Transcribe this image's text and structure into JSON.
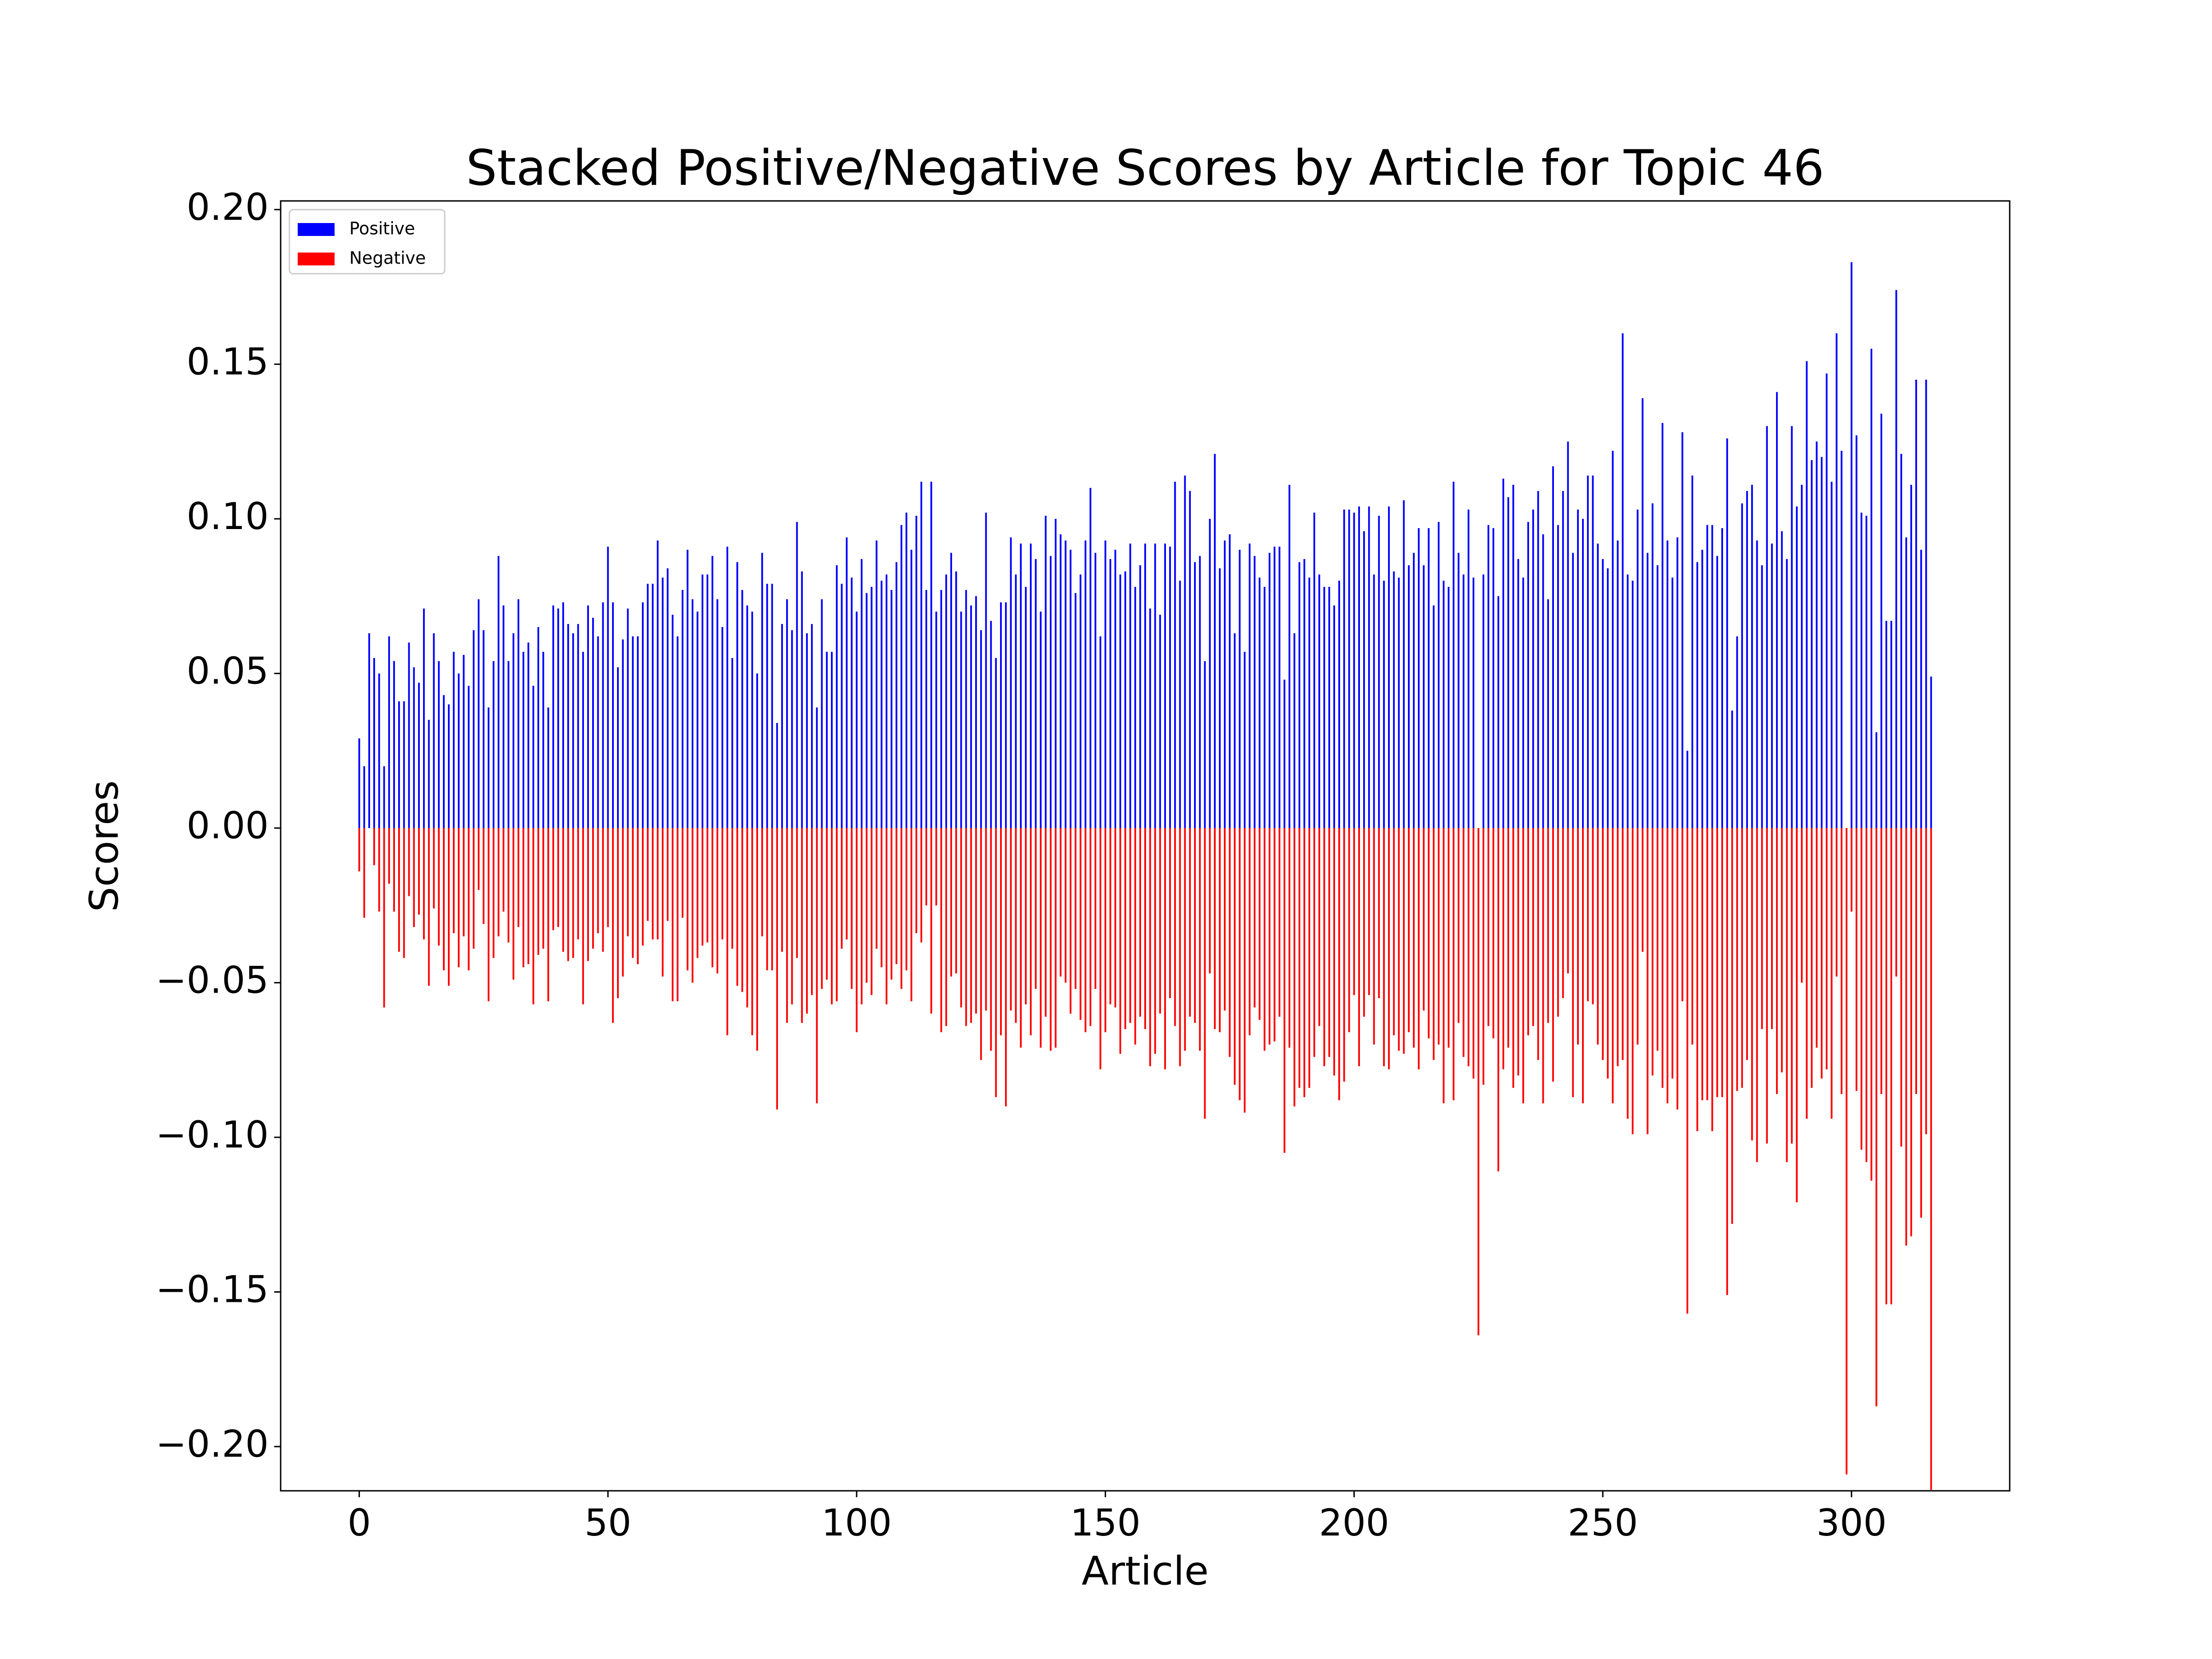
{
  "chart_data": {
    "type": "bar",
    "stacked": true,
    "title": "Stacked Positive/Negative Scores by Article for Topic 46",
    "xlabel": "Article",
    "ylabel": "Scores",
    "legend": "upper left",
    "x": [
      0,
      1,
      2,
      3,
      4,
      5,
      6,
      7,
      8,
      9,
      10,
      11,
      12,
      13,
      14,
      15,
      16,
      17,
      18,
      19,
      20,
      21,
      22,
      23,
      24,
      25,
      26,
      27,
      28,
      29,
      30,
      31,
      32,
      33,
      34,
      35,
      36,
      37,
      38,
      39,
      40,
      41,
      42,
      43,
      44,
      45,
      46,
      47,
      48,
      49,
      50,
      51,
      52,
      53,
      54,
      55,
      56,
      57,
      58,
      59,
      60,
      61,
      62,
      63,
      64,
      65,
      66,
      67,
      68,
      69,
      70,
      71,
      72,
      73,
      74,
      75,
      76,
      77,
      78,
      79,
      80,
      81,
      82,
      83,
      84,
      85,
      86,
      87,
      88,
      89,
      90,
      91,
      92,
      93,
      94,
      95,
      96,
      97,
      98,
      99,
      100,
      101,
      102,
      103,
      104,
      105,
      106,
      107,
      108,
      109,
      110,
      111,
      112,
      113,
      114,
      115,
      116,
      117,
      118,
      119,
      120,
      121,
      122,
      123,
      124,
      125,
      126,
      127,
      128,
      129,
      130,
      131,
      132,
      133,
      134,
      135,
      136,
      137,
      138,
      139,
      140,
      141,
      142,
      143,
      144,
      145,
      146,
      147,
      148,
      149,
      150,
      151,
      152,
      153,
      154,
      155,
      156,
      157,
      158,
      159,
      160,
      161,
      162,
      163,
      164,
      165,
      166,
      167,
      168,
      169,
      170,
      171,
      172,
      173,
      174,
      175,
      176,
      177,
      178,
      179,
      180,
      181,
      182,
      183,
      184,
      185,
      186,
      187,
      188,
      189,
      190,
      191,
      192,
      193,
      194,
      195,
      196,
      197,
      198,
      199,
      200,
      201,
      202,
      203,
      204,
      205,
      206,
      207,
      208,
      209,
      210,
      211,
      212,
      213,
      214,
      215,
      216,
      217,
      218,
      219,
      220,
      221,
      222,
      223,
      224,
      225,
      226,
      227,
      228,
      229,
      230,
      231,
      232,
      233,
      234,
      235,
      236,
      237,
      238,
      239,
      240,
      241,
      242,
      243,
      244,
      245,
      246,
      247,
      248,
      249,
      250,
      251,
      252,
      253,
      254,
      255,
      256,
      257,
      258,
      259,
      260,
      261,
      262,
      263,
      264,
      265,
      266,
      267,
      268,
      269,
      270,
      271,
      272,
      273,
      274,
      275,
      276,
      277,
      278,
      279,
      280,
      281,
      282,
      283,
      284,
      285,
      286,
      287,
      288,
      289,
      290,
      291,
      292,
      293,
      294,
      295,
      296,
      297,
      298,
      299,
      300,
      301,
      302,
      303,
      304,
      305,
      306,
      307,
      308,
      309,
      310,
      311,
      312,
      313,
      314,
      315,
      316
    ],
    "series": [
      {
        "name": "Positive",
        "color": "blue",
        "values": [
          0.029,
          0.02,
          0.063,
          0.055,
          0.05,
          0.02,
          0.062,
          0.054,
          0.041,
          0.041,
          0.06,
          0.052,
          0.047,
          0.071,
          0.035,
          0.063,
          0.054,
          0.043,
          0.04,
          0.057,
          0.05,
          0.056,
          0.046,
          0.064,
          0.074,
          0.064,
          0.039,
          0.054,
          0.088,
          0.072,
          0.054,
          0.063,
          0.074,
          0.057,
          0.06,
          0.046,
          0.065,
          0.057,
          0.039,
          0.072,
          0.071,
          0.073,
          0.066,
          0.063,
          0.066,
          0.057,
          0.072,
          0.068,
          0.062,
          0.073,
          0.091,
          0.073,
          0.052,
          0.061,
          0.071,
          0.062,
          0.062,
          0.073,
          0.079,
          0.079,
          0.093,
          0.081,
          0.084,
          0.069,
          0.062,
          0.077,
          0.09,
          0.074,
          0.07,
          0.082,
          0.082,
          0.088,
          0.074,
          0.065,
          0.091,
          0.055,
          0.086,
          0.077,
          0.072,
          0.07,
          0.05,
          0.089,
          0.079,
          0.079,
          0.034,
          0.066,
          0.074,
          0.064,
          0.099,
          0.083,
          0.063,
          0.066,
          0.039,
          0.074,
          0.057,
          0.057,
          0.085,
          0.079,
          0.094,
          0.081,
          0.07,
          0.087,
          0.076,
          0.078,
          0.093,
          0.08,
          0.082,
          0.077,
          0.086,
          0.098,
          0.102,
          0.09,
          0.101,
          0.112,
          0.077,
          0.112,
          0.07,
          0.077,
          0.082,
          0.089,
          0.083,
          0.07,
          0.077,
          0.072,
          0.075,
          0.064,
          0.102,
          0.067,
          0.055,
          0.073,
          0.073,
          0.094,
          0.082,
          0.092,
          0.078,
          0.092,
          0.087,
          0.07,
          0.101,
          0.088,
          0.1,
          0.095,
          0.093,
          0.09,
          0.076,
          0.082,
          0.093,
          0.11,
          0.089,
          0.062,
          0.093,
          0.087,
          0.09,
          0.082,
          0.083,
          0.092,
          0.078,
          0.085,
          0.092,
          0.071,
          0.092,
          0.069,
          0.092,
          0.091,
          0.112,
          0.08,
          0.114,
          0.109,
          0.086,
          0.088,
          0.054,
          0.1,
          0.121,
          0.084,
          0.093,
          0.095,
          0.063,
          0.09,
          0.057,
          0.092,
          0.088,
          0.081,
          0.078,
          0.089,
          0.091,
          0.091,
          0.048,
          0.111,
          0.063,
          0.086,
          0.087,
          0.081,
          0.102,
          0.082,
          0.078,
          0.078,
          0.072,
          0.08,
          0.103,
          0.103,
          0.102,
          0.104,
          0.096,
          0.104,
          0.082,
          0.101,
          0.08,
          0.104,
          0.083,
          0.081,
          0.106,
          0.085,
          0.089,
          0.097,
          0.085,
          0.097,
          0.072,
          0.099,
          0.08,
          0.078,
          0.112,
          0.089,
          0.082,
          0.103,
          0.081,
          0,
          0.082,
          0.098,
          0.097,
          0.075,
          0.113,
          0.107,
          0.111,
          0.087,
          0.081,
          0.099,
          0.103,
          0.109,
          0.095,
          0.074,
          0.117,
          0.098,
          0.109,
          0.125,
          0.089,
          0.103,
          0.1,
          0.114,
          0.114,
          0.092,
          0.087,
          0.084,
          0.122,
          0.093,
          0.16,
          0.082,
          0.08,
          0.103,
          0.139,
          0.089,
          0.105,
          0.085,
          0.131,
          0.093,
          0.081,
          0.094,
          0.128,
          0.025,
          0.114,
          0.086,
          0.09,
          0.098,
          0.098,
          0.088,
          0.097,
          0.126,
          0.038,
          0.062,
          0.105,
          0.109,
          0.111,
          0.093,
          0.085,
          0.13,
          0.092,
          0.141,
          0.096,
          0.087,
          0.13,
          0.104,
          0.111,
          0.151,
          0.119,
          0.125,
          0.12,
          0.147,
          0.112,
          0.16,
          0.122,
          0,
          0.183,
          0.127,
          0.102,
          0.101,
          0.155,
          0.031,
          0.134,
          0.067,
          0.067,
          0.174,
          0.121,
          0.094,
          0.111,
          0.145,
          0.09,
          0.145,
          0.049
        ]
      },
      {
        "name": "Negative",
        "color": "red",
        "values": [
          -0.014,
          -0.029,
          0,
          -0.012,
          -0.027,
          -0.058,
          -0.018,
          -0.027,
          -0.04,
          -0.042,
          -0.022,
          -0.032,
          -0.028,
          -0.036,
          -0.051,
          -0.026,
          -0.038,
          -0.046,
          -0.051,
          -0.034,
          -0.045,
          -0.035,
          -0.046,
          -0.039,
          -0.02,
          -0.031,
          -0.056,
          -0.042,
          -0.035,
          -0.027,
          -0.037,
          -0.049,
          -0.032,
          -0.045,
          -0.044,
          -0.057,
          -0.041,
          -0.039,
          -0.056,
          -0.033,
          -0.032,
          -0.04,
          -0.043,
          -0.042,
          -0.036,
          -0.057,
          -0.043,
          -0.039,
          -0.034,
          -0.04,
          -0.032,
          -0.063,
          -0.055,
          -0.048,
          -0.035,
          -0.042,
          -0.044,
          -0.038,
          -0.03,
          -0.036,
          -0.036,
          -0.048,
          -0.03,
          -0.056,
          -0.056,
          -0.029,
          -0.046,
          -0.05,
          -0.042,
          -0.038,
          -0.037,
          -0.045,
          -0.047,
          -0.036,
          -0.067,
          -0.039,
          -0.051,
          -0.053,
          -0.058,
          -0.067,
          -0.072,
          -0.035,
          -0.046,
          -0.046,
          -0.091,
          -0.04,
          -0.063,
          -0.057,
          -0.042,
          -0.063,
          -0.06,
          -0.054,
          -0.089,
          -0.052,
          -0.049,
          -0.057,
          -0.056,
          -0.039,
          -0.036,
          -0.052,
          -0.066,
          -0.057,
          -0.05,
          -0.054,
          -0.039,
          -0.045,
          -0.057,
          -0.049,
          -0.044,
          -0.052,
          -0.046,
          -0.056,
          -0.034,
          -0.037,
          -0.025,
          -0.06,
          -0.025,
          -0.066,
          -0.064,
          -0.048,
          -0.047,
          -0.058,
          -0.064,
          -0.063,
          -0.06,
          -0.075,
          -0.059,
          -0.072,
          -0.087,
          -0.067,
          -0.09,
          -0.059,
          -0.063,
          -0.071,
          -0.057,
          -0.067,
          -0.052,
          -0.071,
          -0.061,
          -0.072,
          -0.071,
          -0.048,
          -0.05,
          -0.06,
          -0.052,
          -0.062,
          -0.066,
          -0.064,
          -0.052,
          -0.078,
          -0.066,
          -0.057,
          -0.058,
          -0.073,
          -0.065,
          -0.063,
          -0.07,
          -0.061,
          -0.065,
          -0.077,
          -0.073,
          -0.06,
          -0.078,
          -0.055,
          -0.064,
          -0.077,
          -0.072,
          -0.061,
          -0.063,
          -0.072,
          -0.094,
          -0.047,
          -0.065,
          -0.066,
          -0.059,
          -0.074,
          -0.083,
          -0.088,
          -0.092,
          -0.067,
          -0.058,
          -0.062,
          -0.072,
          -0.07,
          -0.069,
          -0.061,
          -0.105,
          -0.071,
          -0.09,
          -0.084,
          -0.087,
          -0.084,
          -0.074,
          -0.064,
          -0.077,
          -0.074,
          -0.08,
          -0.088,
          -0.082,
          -0.066,
          -0.054,
          -0.077,
          -0.061,
          -0.054,
          -0.07,
          -0.055,
          -0.077,
          -0.078,
          -0.067,
          -0.072,
          -0.073,
          -0.066,
          -0.071,
          -0.078,
          -0.059,
          -0.068,
          -0.075,
          -0.07,
          -0.089,
          -0.071,
          -0.088,
          -0.063,
          -0.074,
          -0.077,
          -0.081,
          -0.164,
          -0.083,
          -0.064,
          -0.068,
          -0.111,
          -0.078,
          -0.071,
          -0.084,
          -0.08,
          -0.089,
          -0.067,
          -0.064,
          -0.075,
          -0.089,
          -0.063,
          -0.082,
          -0.061,
          -0.055,
          -0.047,
          -0.087,
          -0.07,
          -0.089,
          -0.056,
          -0.057,
          -0.07,
          -0.075,
          -0.081,
          -0.089,
          -0.077,
          -0.075,
          -0.094,
          -0.099,
          -0.07,
          -0.04,
          -0.099,
          -0.08,
          -0.072,
          -0.084,
          -0.089,
          -0.081,
          -0.091,
          -0.056,
          -0.157,
          -0.07,
          -0.098,
          -0.088,
          -0.088,
          -0.098,
          -0.087,
          -0.087,
          -0.151,
          -0.128,
          -0.085,
          -0.084,
          -0.075,
          -0.101,
          -0.108,
          -0.065,
          -0.102,
          -0.065,
          -0.086,
          -0.079,
          -0.108,
          -0.102,
          -0.121,
          -0.05,
          -0.094,
          -0.084,
          -0.071,
          -0.081,
          -0.078,
          -0.094,
          -0.048,
          -0.086,
          -0.209,
          -0.027,
          -0.085,
          -0.104,
          -0.108,
          -0.114,
          -0.187,
          -0.086,
          -0.154,
          -0.154,
          -0.048,
          -0.103,
          -0.135,
          -0.132,
          -0.086,
          -0.126,
          -0.099,
          -0.214
        ]
      }
    ],
    "xlim": [
      -15.8,
      331.8
    ],
    "xticks": [
      0,
      50,
      100,
      150,
      200,
      250,
      300
    ],
    "ylim": [
      -0.2143,
      0.2028
    ],
    "yticks": [
      {
        "value": -0.2,
        "label": "−0.20"
      },
      {
        "value": -0.15,
        "label": "−0.15"
      },
      {
        "value": -0.1,
        "label": "−0.10"
      },
      {
        "value": -0.05,
        "label": "−0.05"
      },
      {
        "value": 0,
        "label": "0.00"
      },
      {
        "value": 0.05,
        "label": "0.05"
      },
      {
        "value": 0.1,
        "label": "0.10"
      },
      {
        "value": 0.15,
        "label": "0.15"
      },
      {
        "value": 0.2,
        "label": "0.20"
      }
    ]
  }
}
